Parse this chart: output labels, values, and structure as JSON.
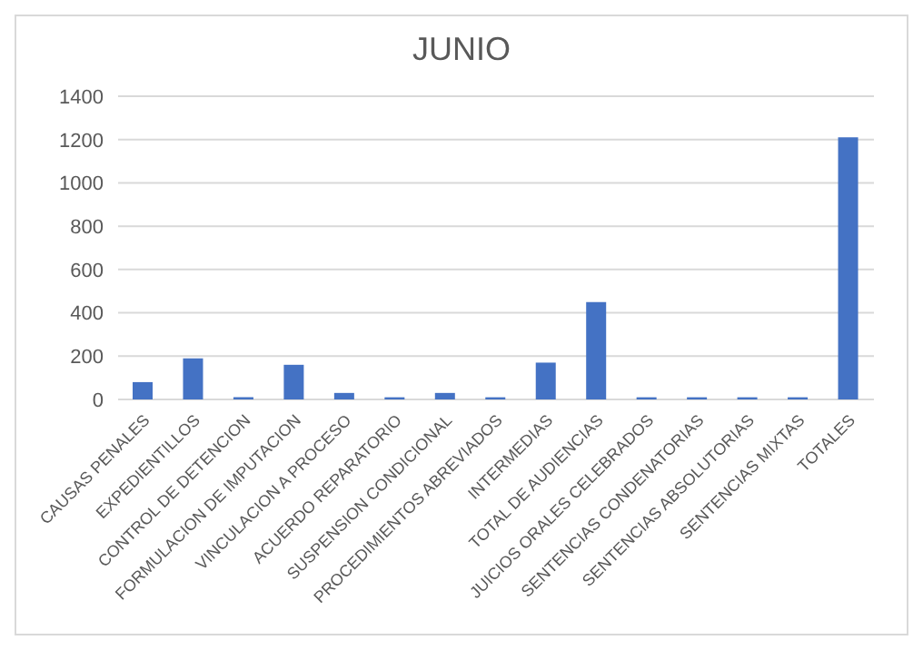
{
  "chart_data": {
    "type": "bar",
    "title": "JUNIO",
    "categories": [
      "CAUSAS PENALES",
      "EXPEDIENTILLOS",
      "CONTROL DE DETENCION",
      "FORMULACION DE IMPUTACION",
      "VINCULACION A PROCESO",
      "ACUERDO REPARATORIO",
      "SUSPENSION CONDICIONAL",
      "PROCEDIMIENTOS ABREVIADOS",
      "INTERMEDIAS",
      "TOTAL DE AUDIENCIAS",
      "JUICIOS ORALES CELEBRADOS",
      "SENTENCIAS CONDENATORIAS",
      "SENTENCIAS ABSOLUTORIAS",
      "SENTENCIAS MIXTAS",
      "TOTALES"
    ],
    "values": [
      80,
      190,
      10,
      160,
      30,
      10,
      30,
      10,
      170,
      450,
      10,
      10,
      10,
      10,
      1210
    ],
    "color": "#4472c4",
    "ylim": [
      0,
      1400
    ],
    "yticks": [
      0,
      200,
      400,
      600,
      800,
      1000,
      1200,
      1400
    ],
    "grid": "y"
  }
}
